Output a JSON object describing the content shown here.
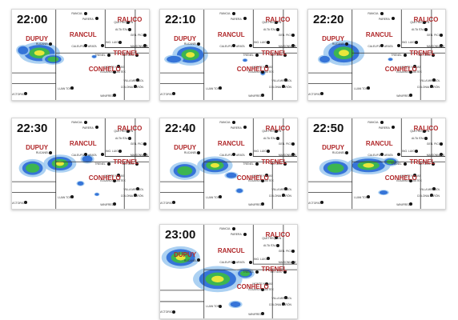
{
  "colors": {
    "department_label": "#b0282a",
    "radar_light_blue": "#9ec9f0",
    "radar_blue": "#2f6fd6",
    "radar_green": "#3db84a",
    "radar_yellow": "#f2ea3a",
    "border_line": "#333333"
  },
  "departments": {
    "rancul": "RANCUL",
    "ralico": "RALICO",
    "dupuy": "DUPUY",
    "trenel": "TRENEL",
    "conhelo": "CONHELO"
  },
  "towns": {
    "rancul": "RANCUL",
    "parera": "PARERA",
    "quemu": "QUETREQUÉN",
    "alta_italia": "ALTA ITALIA",
    "caleufu": "CALEUFÚ",
    "arata": "ARATA",
    "ing_luiggi": "ING. LUIGGI",
    "trenel": "TRENEL",
    "metileo": "METILEO",
    "monte_nievas": "MONTE NIEVAS",
    "eduardo_castex": "EDUARDO CASTEX",
    "villa_mirasol": "VILLA MIRASOL",
    "colonia_barón": "COLONIA BARÓN",
    "winifreda": "WINIFREDA",
    "luan_toro": "LUAN TORO",
    "victorica": "VICTORICA",
    "rucanelo": "RUCANELO",
    "gen_pico": "GEN. PICO",
    "maisonnave": "MAISONNAVE"
  },
  "frames": [
    {
      "time": "22:00"
    },
    {
      "time": "22:10"
    },
    {
      "time": "22:20"
    },
    {
      "time": "22:30"
    },
    {
      "time": "22:40"
    },
    {
      "time": "22:50"
    },
    {
      "time": "23:00"
    }
  ]
}
